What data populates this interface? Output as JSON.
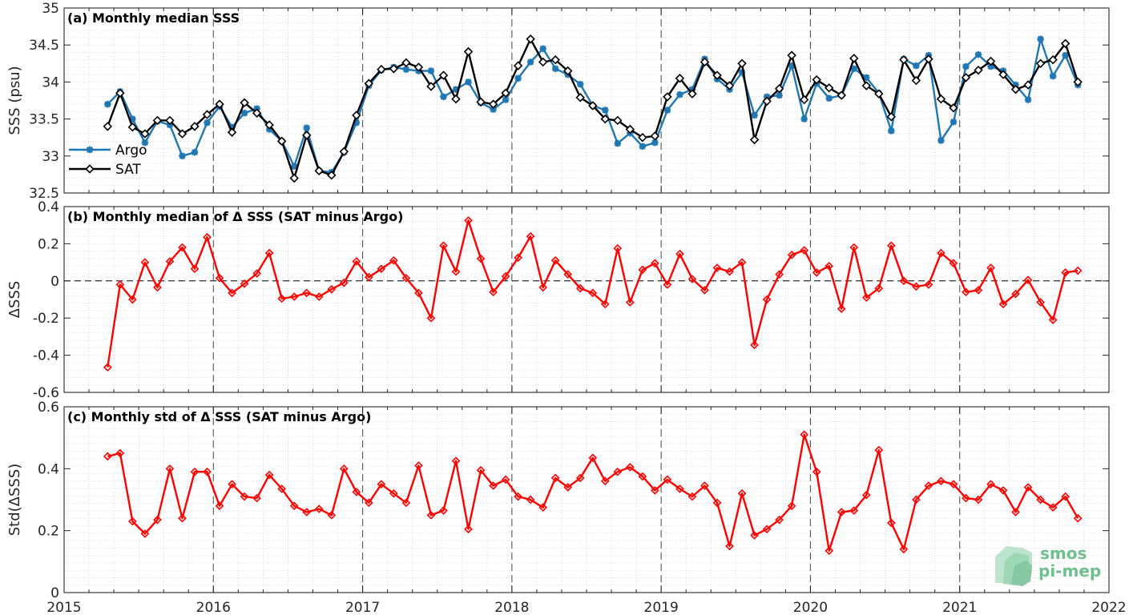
{
  "colors": {
    "argo": "#1f77b4",
    "sat": "#000000",
    "diff": "#ff0000",
    "logo": "#6fbf8f"
  },
  "x_ticks": [
    "2015",
    "2016",
    "2017",
    "2018",
    "2019",
    "2020",
    "2021",
    "2022"
  ],
  "logo": {
    "line1": "smos",
    "line2": "pi-mep"
  },
  "chart_data": [
    {
      "type": "line",
      "title": "(a) Monthly median SSS",
      "ylabel": "SSS (psu)",
      "xlim": [
        2015,
        2022
      ],
      "ylim": [
        32.5,
        35
      ],
      "yticks": [
        "32.5",
        "33",
        "33.5",
        "34",
        "34.5",
        "35"
      ],
      "ytick_values": [
        32.5,
        33,
        33.5,
        34,
        34.5,
        35
      ],
      "grid": true,
      "legend": {
        "placement": "lower-left",
        "entries": [
          "Argo",
          "SAT"
        ]
      },
      "series": [
        {
          "name": "Argo",
          "values": [
            33.7,
            33.87,
            33.5,
            33.18,
            33.47,
            33.42,
            33.0,
            33.05,
            33.45,
            33.67,
            33.39,
            33.58,
            33.64,
            33.36,
            33.2,
            32.86,
            33.38,
            32.8,
            32.78,
            33.05,
            33.45,
            33.95,
            34.16,
            34.2,
            34.17,
            34.15,
            34.15,
            33.8,
            33.9,
            34.0,
            33.72,
            33.63,
            33.76,
            34.05,
            34.27,
            34.45,
            34.18,
            34.1,
            33.97,
            33.68,
            33.62,
            33.17,
            33.31,
            33.13,
            33.18,
            33.62,
            33.83,
            33.9,
            34.31,
            34.04,
            33.9,
            34.13,
            33.55,
            33.8,
            33.82,
            34.22,
            33.5,
            33.98,
            33.78,
            33.82,
            34.18,
            34.06,
            33.85,
            33.34,
            34.31,
            34.22,
            34.36,
            33.21,
            33.46,
            34.21,
            34.37,
            34.21,
            34.15,
            33.96,
            33.76,
            34.58,
            34.08,
            34.36,
            33.96
          ]
        },
        {
          "name": "SAT",
          "values": [
            33.4,
            33.85,
            33.39,
            33.3,
            33.48,
            33.48,
            33.3,
            33.4,
            33.56,
            33.7,
            33.32,
            33.72,
            33.58,
            33.42,
            33.2,
            32.7,
            33.28,
            32.8,
            32.74,
            33.06,
            33.55,
            33.98,
            34.17,
            34.18,
            34.26,
            34.2,
            33.94,
            34.09,
            33.77,
            34.41,
            33.73,
            33.7,
            33.85,
            34.22,
            34.58,
            34.27,
            34.3,
            34.15,
            33.79,
            33.68,
            33.5,
            33.48,
            33.36,
            33.25,
            33.27,
            33.8,
            34.05,
            33.84,
            34.27,
            34.09,
            33.95,
            34.25,
            33.22,
            33.74,
            33.91,
            34.36,
            33.76,
            34.03,
            33.92,
            33.82,
            34.32,
            33.95,
            33.84,
            33.53,
            34.3,
            34.02,
            34.31,
            33.77,
            33.65,
            34.06,
            34.16,
            34.28,
            34.1,
            33.9,
            33.96,
            34.25,
            34.3,
            34.52,
            34.0
          ]
        }
      ]
    },
    {
      "type": "line",
      "title": "(b) Monthly median of Δ SSS (SAT minus Argo)",
      "ylabel": "ΔSSS",
      "xlim": [
        2015,
        2022
      ],
      "ylim": [
        -0.6,
        0.4
      ],
      "yticks": [
        "-0.6",
        "-0.4",
        "-0.2",
        "0",
        "0.2",
        "0.4"
      ],
      "ytick_values": [
        -0.6,
        -0.4,
        -0.2,
        0,
        0.2,
        0.4
      ],
      "zero_line": true,
      "grid": true,
      "series": [
        {
          "values": [
            -0.465,
            -0.02,
            -0.1,
            0.1,
            -0.035,
            0.105,
            0.18,
            0.065,
            0.235,
            0.015,
            -0.065,
            -0.015,
            0.04,
            0.15,
            -0.095,
            -0.085,
            -0.065,
            -0.085,
            -0.045,
            -0.01,
            0.105,
            0.02,
            0.065,
            0.11,
            0.015,
            -0.065,
            -0.2,
            0.19,
            0.05,
            0.325,
            0.12,
            -0.06,
            0.025,
            0.125,
            0.24,
            -0.035,
            0.11,
            0.035,
            -0.04,
            -0.065,
            -0.125,
            0.175,
            -0.115,
            0.06,
            0.095,
            -0.02,
            0.145,
            0.01,
            -0.05,
            0.07,
            0.05,
            0.1,
            -0.345,
            -0.1,
            0.035,
            0.14,
            0.165,
            0.045,
            0.08,
            -0.15,
            0.18,
            -0.09,
            -0.04,
            0.19,
            0.0,
            -0.03,
            -0.02,
            0.15,
            0.095,
            -0.06,
            -0.05,
            0.07,
            -0.125,
            -0.07,
            0.005,
            -0.115,
            -0.21,
            0.045,
            0.055
          ]
        }
      ]
    },
    {
      "type": "line",
      "title": "(c) Monthly std of Δ SSS (SAT minus Argo)",
      "ylabel": "Std(ΔSSS)",
      "xlim": [
        2015,
        2022
      ],
      "ylim": [
        0,
        0.6
      ],
      "yticks": [
        "0",
        "0.2",
        "0.4",
        "0.6"
      ],
      "ytick_values": [
        0,
        0.2,
        0.4,
        0.6
      ],
      "grid": true,
      "series": [
        {
          "values": [
            0.44,
            0.45,
            0.23,
            0.19,
            0.235,
            0.4,
            0.24,
            0.39,
            0.39,
            0.28,
            0.35,
            0.31,
            0.305,
            0.38,
            0.335,
            0.28,
            0.26,
            0.27,
            0.25,
            0.4,
            0.325,
            0.29,
            0.35,
            0.32,
            0.29,
            0.41,
            0.25,
            0.265,
            0.425,
            0.205,
            0.395,
            0.345,
            0.365,
            0.31,
            0.3,
            0.275,
            0.37,
            0.34,
            0.37,
            0.435,
            0.36,
            0.39,
            0.405,
            0.375,
            0.33,
            0.365,
            0.335,
            0.31,
            0.345,
            0.29,
            0.15,
            0.32,
            0.185,
            0.205,
            0.235,
            0.28,
            0.51,
            0.39,
            0.135,
            0.26,
            0.265,
            0.315,
            0.46,
            0.225,
            0.14,
            0.3,
            0.345,
            0.36,
            0.35,
            0.305,
            0.3,
            0.35,
            0.33,
            0.26,
            0.34,
            0.3,
            0.275,
            0.31,
            0.24
          ]
        }
      ]
    }
  ]
}
